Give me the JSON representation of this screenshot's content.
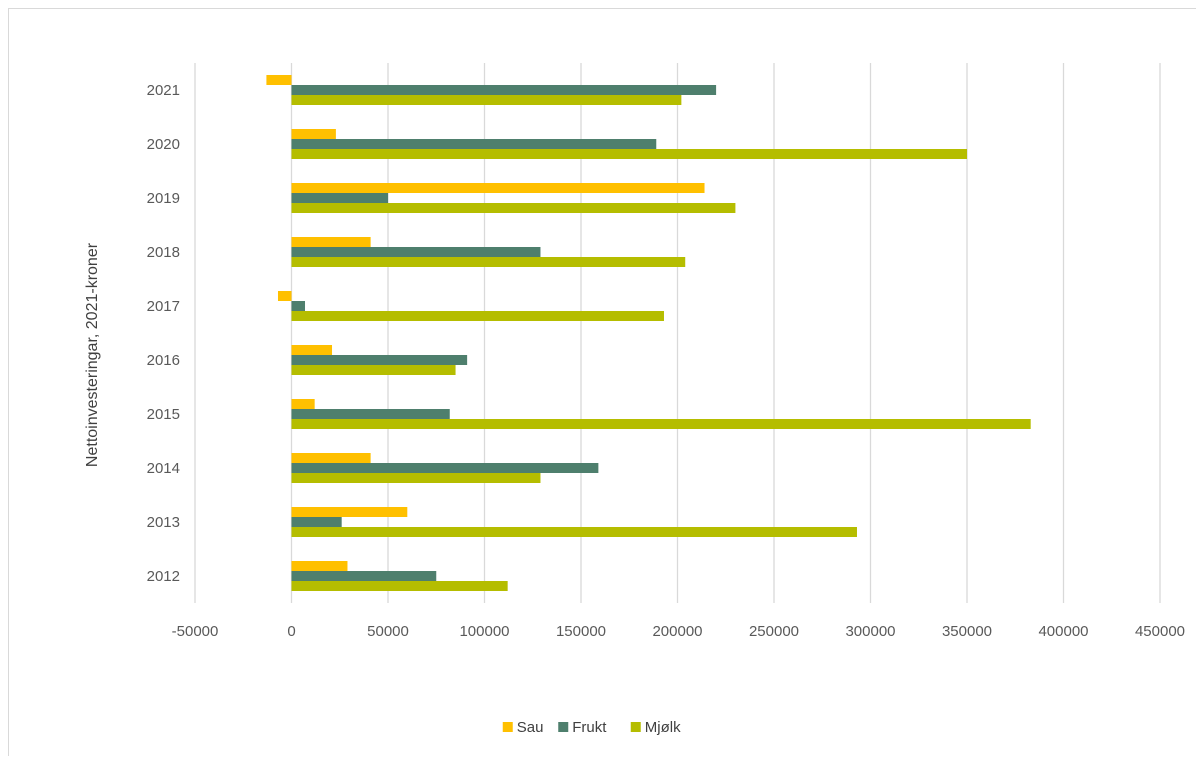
{
  "chart_data": {
    "type": "bar",
    "orientation": "horizontal",
    "title": "",
    "xlabel": "",
    "ylabel": "Nettoinvesteringar, 2021-kroner",
    "categories": [
      "2012",
      "2013",
      "2014",
      "2015",
      "2016",
      "2017",
      "2018",
      "2019",
      "2020",
      "2021"
    ],
    "series": [
      {
        "name": "Sau",
        "color": "#FFC000",
        "values": [
          29000,
          60000,
          41000,
          12000,
          21000,
          -7000,
          41000,
          214000,
          23000,
          -13000
        ]
      },
      {
        "name": "Frukt",
        "color": "#4E7F6D",
        "values": [
          75000,
          26000,
          159000,
          82000,
          91000,
          7000,
          129000,
          50000,
          189000,
          220000
        ]
      },
      {
        "name": "Mjølk",
        "color": "#B5BD00",
        "values": [
          112000,
          293000,
          129000,
          383000,
          85000,
          193000,
          204000,
          230000,
          350000,
          202000
        ]
      }
    ],
    "xlim": [
      -50000,
      450000
    ],
    "xticks": [
      "-50000",
      "0",
      "50000",
      "100000",
      "150000",
      "200000",
      "250000",
      "300000",
      "350000",
      "400000",
      "450000"
    ],
    "xtick_values": [
      -50000,
      0,
      50000,
      100000,
      150000,
      200000,
      250000,
      300000,
      350000,
      400000,
      450000
    ],
    "grid": "vertical",
    "legend_position": "bottom"
  }
}
